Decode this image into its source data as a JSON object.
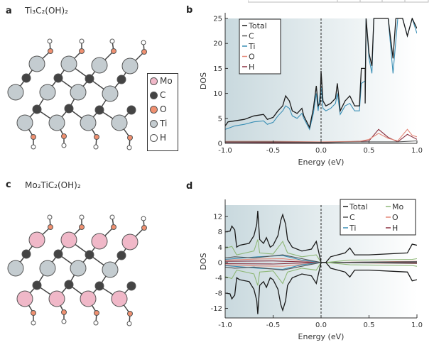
{
  "panels": {
    "a": {
      "label": "a",
      "title": "Ti₃C₂(OH)₂"
    },
    "b": {
      "label": "b"
    },
    "c": {
      "label": "c",
      "title": "Mo₂TiC₂(OH)₂"
    },
    "d": {
      "label": "d"
    }
  },
  "atom_legend": {
    "items": [
      {
        "label": "Mo",
        "color": "#f0b8c8"
      },
      {
        "label": "C",
        "color": "#444444"
      },
      {
        "label": "O",
        "color": "#f09070"
      },
      {
        "label": "Ti",
        "color": "#c4ccd0"
      },
      {
        "label": "H",
        "color": "#ffffff"
      }
    ]
  },
  "colors": {
    "Total": "#1a1a1a",
    "C": "#555555",
    "Ti": "#3a8fb5",
    "O": "#e48878",
    "H": "#8a3040",
    "Mo": "#8fb878"
  },
  "chart_data": [
    {
      "type": "line",
      "panel": "b",
      "xlabel": "Energy (eV)",
      "ylabel": "DOS",
      "xlim": [
        -1,
        1
      ],
      "ylim": [
        0,
        25
      ],
      "xticks": [
        "-1.0",
        "-0.5",
        "0.0",
        "0.5",
        "1.0"
      ],
      "xtick_values": [
        -1,
        -0.5,
        0,
        0.5,
        1
      ],
      "yticks": [
        "0",
        "5",
        "10",
        "15",
        "20",
        "25"
      ],
      "ytick_values": [
        0,
        5,
        10,
        15,
        20,
        25
      ],
      "fermi_level": 0,
      "legend": [
        "Total",
        "C",
        "Ti",
        "O",
        "H"
      ],
      "legend_position": "top-left",
      "series": [
        {
          "name": "Total",
          "points": [
            [
              -1,
              3.5
            ],
            [
              -0.97,
              4.3
            ],
            [
              -0.9,
              4.5
            ],
            [
              -0.8,
              4.8
            ],
            [
              -0.7,
              5.5
            ],
            [
              -0.6,
              5.8
            ],
            [
              -0.56,
              4.8
            ],
            [
              -0.5,
              5.2
            ],
            [
              -0.45,
              6.5
            ],
            [
              -0.4,
              7.5
            ],
            [
              -0.37,
              9.5
            ],
            [
              -0.33,
              8.5
            ],
            [
              -0.3,
              6.5
            ],
            [
              -0.25,
              6
            ],
            [
              -0.2,
              7
            ],
            [
              -0.18,
              5.5
            ],
            [
              -0.12,
              3.2
            ],
            [
              -0.08,
              7
            ],
            [
              -0.05,
              11.5
            ],
            [
              -0.03,
              7.5
            ],
            [
              -0.01,
              8
            ],
            [
              0,
              14.5
            ],
            [
              0.02,
              8.5
            ],
            [
              0.05,
              7.5
            ],
            [
              0.1,
              8
            ],
            [
              0.15,
              9
            ],
            [
              0.17,
              12
            ],
            [
              0.2,
              6.5
            ],
            [
              0.25,
              8.5
            ],
            [
              0.3,
              9.5
            ],
            [
              0.35,
              7.5
            ],
            [
              0.4,
              7.5
            ],
            [
              0.42,
              15
            ],
            [
              0.46,
              15
            ],
            [
              0.46,
              8
            ],
            [
              0.47,
              25
            ],
            [
              0.5,
              18
            ],
            [
              0.53,
              15.5
            ],
            [
              0.55,
              25
            ],
            [
              0.7,
              25
            ],
            [
              0.75,
              17
            ],
            [
              0.78,
              25
            ],
            [
              0.85,
              25
            ],
            [
              0.9,
              21.5
            ],
            [
              0.95,
              25
            ],
            [
              1,
              23
            ]
          ]
        },
        {
          "name": "C",
          "points": [
            [
              -1,
              0.3
            ],
            [
              -0.5,
              0.3
            ],
            [
              0,
              0.2
            ],
            [
              0.5,
              0.3
            ],
            [
              0.8,
              0.3
            ],
            [
              1,
              0.5
            ]
          ]
        },
        {
          "name": "Ti",
          "points": [
            [
              -1,
              2.8
            ],
            [
              -0.9,
              3.5
            ],
            [
              -0.8,
              3.8
            ],
            [
              -0.7,
              4.3
            ],
            [
              -0.6,
              4.5
            ],
            [
              -0.56,
              3.8
            ],
            [
              -0.5,
              4.2
            ],
            [
              -0.45,
              5.5
            ],
            [
              -0.4,
              6.5
            ],
            [
              -0.37,
              7.5
            ],
            [
              -0.33,
              7
            ],
            [
              -0.3,
              5.5
            ],
            [
              -0.25,
              5
            ],
            [
              -0.2,
              6
            ],
            [
              -0.18,
              5
            ],
            [
              -0.12,
              2.8
            ],
            [
              -0.08,
              6
            ],
            [
              -0.05,
              10
            ],
            [
              -0.03,
              6.5
            ],
            [
              0,
              11.5
            ],
            [
              0.02,
              7
            ],
            [
              0.05,
              6.5
            ],
            [
              0.1,
              7
            ],
            [
              0.15,
              8
            ],
            [
              0.17,
              10
            ],
            [
              0.2,
              5.8
            ],
            [
              0.25,
              7.5
            ],
            [
              0.3,
              8
            ],
            [
              0.35,
              6.5
            ],
            [
              0.4,
              6.5
            ],
            [
              0.42,
              12
            ],
            [
              0.46,
              12.5
            ],
            [
              0.47,
              25
            ],
            [
              0.5,
              17
            ],
            [
              0.53,
              14
            ],
            [
              0.55,
              25
            ],
            [
              0.7,
              25
            ],
            [
              0.75,
              14
            ],
            [
              0.8,
              25
            ],
            [
              0.85,
              25
            ],
            [
              0.9,
              21.5
            ],
            [
              0.95,
              25
            ],
            [
              1,
              22
            ]
          ]
        },
        {
          "name": "O",
          "points": [
            [
              -1,
              0.4
            ],
            [
              -0.5,
              0.4
            ],
            [
              0,
              0.3
            ],
            [
              0.4,
              0.4
            ],
            [
              0.5,
              0.8
            ],
            [
              0.6,
              2
            ],
            [
              0.7,
              1
            ],
            [
              0.8,
              0.5
            ],
            [
              0.9,
              2.8
            ],
            [
              0.95,
              1.6
            ],
            [
              1,
              1.3
            ]
          ]
        },
        {
          "name": "H",
          "points": [
            [
              -1,
              0.2
            ],
            [
              0,
              0.1
            ],
            [
              0.5,
              0.5
            ],
            [
              0.6,
              2.8
            ],
            [
              0.7,
              1.2
            ],
            [
              0.8,
              0.3
            ],
            [
              0.9,
              1.8
            ],
            [
              1,
              0.8
            ]
          ]
        }
      ]
    },
    {
      "type": "line",
      "panel": "d",
      "xlabel": "Energy (eV)",
      "ylabel": "DOS",
      "xlim": [
        -1,
        1
      ],
      "ylim": [
        -14.5,
        15
      ],
      "xticks": [
        "-1.0",
        "-0.5",
        "0.0",
        "0.5",
        "1.0"
      ],
      "xtick_values": [
        -1,
        -0.5,
        0,
        0.5,
        1
      ],
      "yticks": [
        "12",
        "8",
        "4",
        "0",
        "-4",
        "-8",
        "-12"
      ],
      "ytick_values": [
        12,
        8,
        4,
        0,
        -4,
        -8,
        -12
      ],
      "fermi_level": 0,
      "spin_mirrored": true,
      "legend": [
        "Total",
        "C",
        "Ti",
        "Mo",
        "O",
        "H"
      ],
      "legend_position": "top-right",
      "series": [
        {
          "name": "Total",
          "points": [
            [
              -1,
              8
            ],
            [
              -0.95,
              8.2
            ],
            [
              -0.93,
              9.5
            ],
            [
              -0.9,
              8.5
            ],
            [
              -0.88,
              4
            ],
            [
              -0.85,
              4.5
            ],
            [
              -0.75,
              5
            ],
            [
              -0.7,
              7
            ],
            [
              -0.67,
              10
            ],
            [
              -0.66,
              13.5
            ],
            [
              -0.64,
              6
            ],
            [
              -0.6,
              5
            ],
            [
              -0.57,
              6.5
            ],
            [
              -0.53,
              4
            ],
            [
              -0.5,
              4.5
            ],
            [
              -0.45,
              7
            ],
            [
              -0.42,
              11
            ],
            [
              -0.4,
              12.5
            ],
            [
              -0.37,
              10
            ],
            [
              -0.35,
              6
            ],
            [
              -0.3,
              4
            ],
            [
              -0.2,
              3
            ],
            [
              -0.1,
              3.5
            ],
            [
              -0.05,
              5.5
            ],
            [
              0,
              0
            ],
            [
              0.05,
              0
            ],
            [
              0.1,
              1.5
            ],
            [
              0.25,
              2.5
            ],
            [
              0.3,
              3.8
            ],
            [
              0.35,
              2
            ],
            [
              0.5,
              2
            ],
            [
              0.9,
              2.5
            ],
            [
              0.95,
              4.8
            ],
            [
              1,
              4.5
            ]
          ]
        },
        {
          "name": "Mo",
          "points": [
            [
              -1,
              3.7
            ],
            [
              -0.93,
              4.2
            ],
            [
              -0.88,
              2
            ],
            [
              -0.7,
              3
            ],
            [
              -0.66,
              6
            ],
            [
              -0.64,
              2.5
            ],
            [
              -0.5,
              2.2
            ],
            [
              -0.4,
              5.5
            ],
            [
              -0.35,
              2.5
            ],
            [
              -0.2,
              1.5
            ],
            [
              -0.05,
              2
            ],
            [
              0,
              0
            ],
            [
              0.05,
              0
            ],
            [
              0.3,
              0.6
            ],
            [
              0.95,
              0.8
            ],
            [
              1,
              1
            ]
          ]
        },
        {
          "name": "C",
          "points": [
            [
              -1,
              1.2
            ],
            [
              -0.9,
              1.5
            ],
            [
              -0.7,
              1.2
            ],
            [
              -0.4,
              2
            ],
            [
              -0.2,
              1
            ],
            [
              0,
              0
            ],
            [
              0.05,
              0
            ],
            [
              1,
              0.2
            ]
          ]
        },
        {
          "name": "Ti",
          "points": [
            [
              -1,
              0.8
            ],
            [
              -0.66,
              1.5
            ],
            [
              -0.4,
              1.8
            ],
            [
              -0.2,
              0.6
            ],
            [
              0,
              0
            ],
            [
              0.05,
              0
            ],
            [
              1,
              0.2
            ]
          ]
        },
        {
          "name": "O",
          "points": [
            [
              -1,
              0.6
            ],
            [
              -0.66,
              0.9
            ],
            [
              -0.4,
              1
            ],
            [
              0,
              0
            ],
            [
              0.05,
              0
            ],
            [
              1,
              0.3
            ]
          ]
        },
        {
          "name": "H",
          "points": [
            [
              -1,
              0.3
            ],
            [
              -0.5,
              0.4
            ],
            [
              0,
              0
            ],
            [
              0.05,
              0
            ],
            [
              1,
              0.1
            ]
          ]
        }
      ]
    }
  ]
}
